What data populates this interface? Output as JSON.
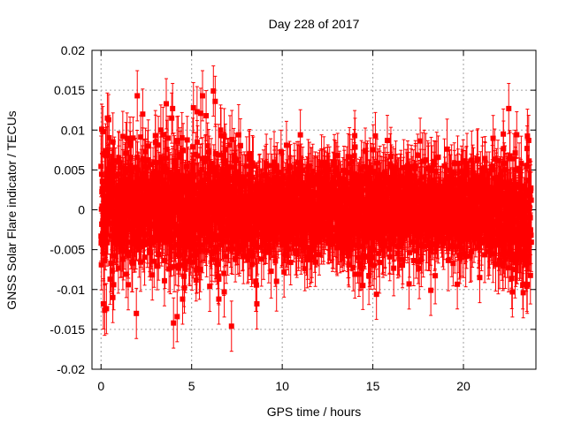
{
  "chart_data": {
    "type": "scatter",
    "title": "Day 228 of 2017",
    "xlabel": "GPS time / hours",
    "ylabel": "GNSS Solar Flare indicator / TECUs",
    "xlim": [
      -0.5,
      24.0
    ],
    "ylim": [
      -0.02,
      0.02
    ],
    "xticks": [
      0,
      5,
      10,
      15,
      20
    ],
    "xtick_labels": [
      "0",
      "5",
      "10",
      "15",
      "20"
    ],
    "yticks": [
      -0.02,
      -0.015,
      -0.01,
      -0.005,
      0,
      0.005,
      0.01,
      0.015,
      0.02
    ],
    "ytick_labels": [
      "-0.02",
      "-0.015",
      "-0.01",
      "-0.005",
      "0",
      "0.005",
      "0.01",
      "0.015",
      "0.02"
    ],
    "grid": true,
    "legend": "none",
    "marker": "filled-square",
    "error_bars": true,
    "color": "#ff0000",
    "series": [
      {
        "x_start": 0.0,
        "x_end": 23.75,
        "x_step": 0.0083,
        "typical_abs_y": 0.005,
        "typical_error": 0.003,
        "values": [
          [
            0.0,
            -0.0033
          ],
          [
            0.02,
            -0.0069
          ],
          [
            0.04,
            0.0101
          ],
          [
            0.1,
            0.0098
          ],
          [
            0.13,
            -0.0118
          ],
          [
            0.2,
            -0.0126
          ],
          [
            0.3,
            -0.0124
          ],
          [
            0.35,
            0.0115
          ],
          [
            0.42,
            0.0113
          ],
          [
            0.5,
            -0.0087
          ],
          [
            0.65,
            -0.011
          ],
          [
            0.7,
            -0.0094
          ],
          [
            1.2,
            0.0092
          ],
          [
            1.5,
            -0.0094
          ],
          [
            1.6,
            0.0085
          ],
          [
            1.95,
            -0.013
          ],
          [
            2.0,
            0.0143
          ],
          [
            2.3,
            0.012
          ],
          [
            3.0,
            0.0093
          ],
          [
            3.3,
            0.01
          ],
          [
            3.5,
            -0.0089
          ],
          [
            3.6,
            0.0133
          ],
          [
            3.9,
            0.0115
          ],
          [
            3.95,
            0.0127
          ],
          [
            4.0,
            -0.0142
          ],
          [
            4.2,
            -0.0134
          ],
          [
            4.5,
            -0.0112
          ],
          [
            4.6,
            -0.0098
          ],
          [
            5.1,
            0.0128
          ],
          [
            5.3,
            0.0123
          ],
          [
            5.5,
            0.0121
          ],
          [
            5.6,
            0.0143
          ],
          [
            5.8,
            0.0118
          ],
          [
            6.0,
            -0.0096
          ],
          [
            6.2,
            0.0149
          ],
          [
            6.3,
            0.0136
          ],
          [
            6.5,
            -0.0112
          ],
          [
            6.6,
            0.01
          ],
          [
            6.8,
            -0.0103
          ],
          [
            7.2,
            -0.0146
          ],
          [
            8.6,
            -0.0118
          ],
          [
            10.1,
            -0.0078
          ],
          [
            11.0,
            0.0094
          ],
          [
            14.0,
            0.0093
          ],
          [
            15.2,
            -0.0106
          ],
          [
            15.8,
            0.0087
          ],
          [
            17.0,
            -0.0093
          ],
          [
            18.2,
            -0.0101
          ],
          [
            20.9,
            -0.0085
          ],
          [
            22.2,
            0.0095
          ],
          [
            22.5,
            0.0127
          ],
          [
            22.7,
            -0.0103
          ],
          [
            23.3,
            -0.0104
          ],
          [
            23.5,
            -0.0096
          ],
          [
            23.6,
            0.0087
          ]
        ]
      }
    ]
  }
}
